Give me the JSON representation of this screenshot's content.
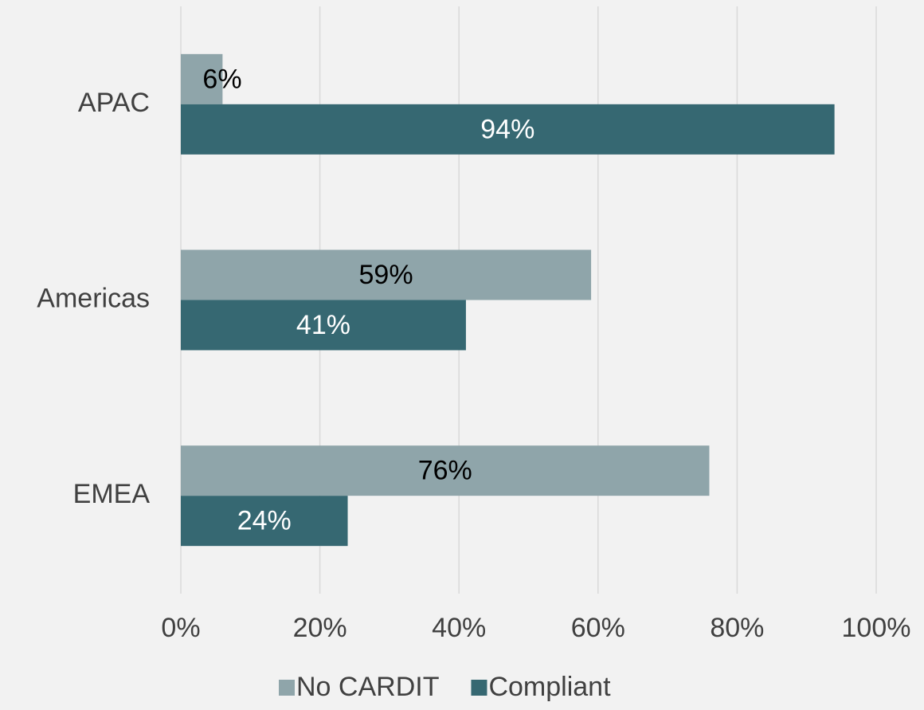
{
  "chart_data": {
    "type": "hbar",
    "categories": [
      "APAC",
      "Americas",
      "EMEA"
    ],
    "series": [
      {
        "name": "No CARDIT",
        "color": "#8fa5aa",
        "label_color": "#000000",
        "values": [
          6,
          59,
          76
        ],
        "value_labels": [
          "6%",
          "59%",
          "76%"
        ]
      },
      {
        "name": "Compliant",
        "color": "#366872",
        "label_color": "#ffffff",
        "values": [
          94,
          41,
          24
        ],
        "value_labels": [
          "94%",
          "41%",
          "24%"
        ]
      }
    ],
    "xlim": [
      0,
      100
    ],
    "xticks": [
      {
        "value": 0,
        "label": "0%"
      },
      {
        "value": 20,
        "label": "20%"
      },
      {
        "value": 40,
        "label": "40%"
      },
      {
        "value": 60,
        "label": "60%"
      },
      {
        "value": 80,
        "label": "80%"
      },
      {
        "value": 100,
        "label": "100%"
      }
    ],
    "grid": true,
    "legend": "bottom"
  }
}
